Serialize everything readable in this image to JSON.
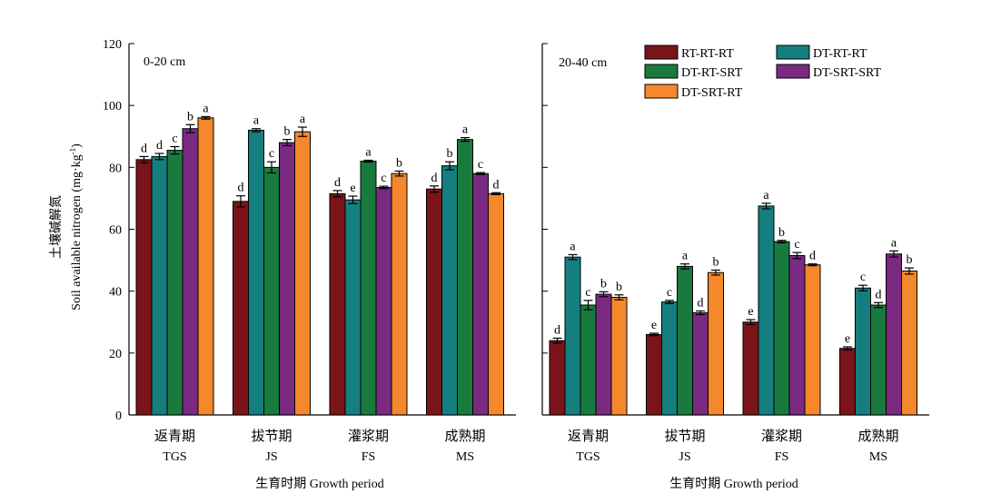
{
  "chart_data": [
    {
      "type": "bar",
      "panel_label": "0-20 cm",
      "categories": [
        {
          "cn": "返青期",
          "en": "TGS"
        },
        {
          "cn": "拔节期",
          "en": "JS"
        },
        {
          "cn": "灌浆期",
          "en": "FS"
        },
        {
          "cn": "成熟期",
          "en": "MS"
        }
      ],
      "ylabel_cn": "土壤碱解氮",
      "ylabel_en": "Soil available nitrogen (mg·kg",
      "ylabel_sup": "-1",
      "ylabel_close": ")",
      "xlabel": "生育时期 Growth period",
      "ylim": [
        0,
        120
      ],
      "yticks": [
        0,
        20,
        40,
        60,
        80,
        100,
        120
      ],
      "series": [
        {
          "name": "RT-RT-RT",
          "values": [
            82.5,
            69.0,
            71.5,
            73.0
          ],
          "errors": [
            1.0,
            1.8,
            1.0,
            1.0
          ],
          "letters": [
            "d",
            "d",
            "d",
            "d"
          ]
        },
        {
          "name": "DT-RT-RT",
          "values": [
            83.5,
            92.0,
            69.5,
            80.5
          ],
          "errors": [
            1.0,
            0.5,
            1.2,
            1.3
          ],
          "letters": [
            "d",
            "a",
            "e",
            "b"
          ]
        },
        {
          "name": "DT-RT-SRT",
          "values": [
            85.5,
            80.0,
            82.0,
            89.0
          ],
          "errors": [
            1.2,
            1.8,
            0.3,
            0.6
          ],
          "letters": [
            "c",
            "c",
            "a",
            "a"
          ]
        },
        {
          "name": "DT-SRT-SRT",
          "values": [
            92.5,
            88.0,
            73.5,
            78.0
          ],
          "errors": [
            1.3,
            1.0,
            0.4,
            0.3
          ],
          "letters": [
            "b",
            "b",
            "c",
            "c"
          ]
        },
        {
          "name": "DT-SRT-RT",
          "values": [
            96.0,
            91.5,
            78.0,
            71.5
          ],
          "errors": [
            0.4,
            1.5,
            0.8,
            0.3
          ],
          "letters": [
            "a",
            "a",
            "b",
            "d"
          ]
        }
      ]
    },
    {
      "type": "bar",
      "panel_label": "20-40 cm",
      "categories": [
        {
          "cn": "返青期",
          "en": "TGS"
        },
        {
          "cn": "拔节期",
          "en": "JS"
        },
        {
          "cn": "灌浆期",
          "en": "FS"
        },
        {
          "cn": "成熟期",
          "en": "MS"
        }
      ],
      "xlabel": "生育时期 Growth period",
      "ylim": [
        0,
        120
      ],
      "legend_position": "top-right",
      "series": [
        {
          "name": "RT-RT-RT",
          "values": [
            24.0,
            26.0,
            30.0,
            21.5
          ],
          "errors": [
            0.8,
            0.4,
            0.8,
            0.5
          ],
          "letters": [
            "d",
            "e",
            "e",
            "e"
          ]
        },
        {
          "name": "DT-RT-RT",
          "values": [
            51.0,
            36.5,
            67.5,
            41.0
          ],
          "errors": [
            0.8,
            0.5,
            0.9,
            0.9
          ],
          "letters": [
            "a",
            "c",
            "a",
            "c"
          ]
        },
        {
          "name": "DT-RT-SRT",
          "values": [
            35.5,
            48.0,
            56.0,
            35.5
          ],
          "errors": [
            1.5,
            0.8,
            0.4,
            0.8
          ],
          "letters": [
            "c",
            "a",
            "b",
            "d"
          ]
        },
        {
          "name": "DT-SRT-SRT",
          "values": [
            39.0,
            33.0,
            51.5,
            52.0
          ],
          "errors": [
            0.8,
            0.6,
            1.0,
            1.0
          ],
          "letters": [
            "b",
            "d",
            "c",
            "a"
          ]
        },
        {
          "name": "DT-SRT-RT",
          "values": [
            38.0,
            46.0,
            48.5,
            46.5
          ],
          "errors": [
            0.8,
            0.8,
            0.3,
            1.0
          ],
          "letters": [
            "b",
            "b",
            "d",
            "b"
          ]
        }
      ]
    }
  ],
  "colors": {
    "RT-RT-RT": "#7a1418",
    "DT-RT-RT": "#157f80",
    "DT-RT-SRT": "#197a3e",
    "DT-SRT-SRT": "#7b2a82",
    "DT-SRT-RT": "#f5882a",
    "axis": "#000000"
  },
  "legend": {
    "entries": [
      "RT-RT-RT",
      "DT-RT-RT",
      "DT-RT-SRT",
      "DT-SRT-SRT",
      "DT-SRT-RT"
    ]
  }
}
